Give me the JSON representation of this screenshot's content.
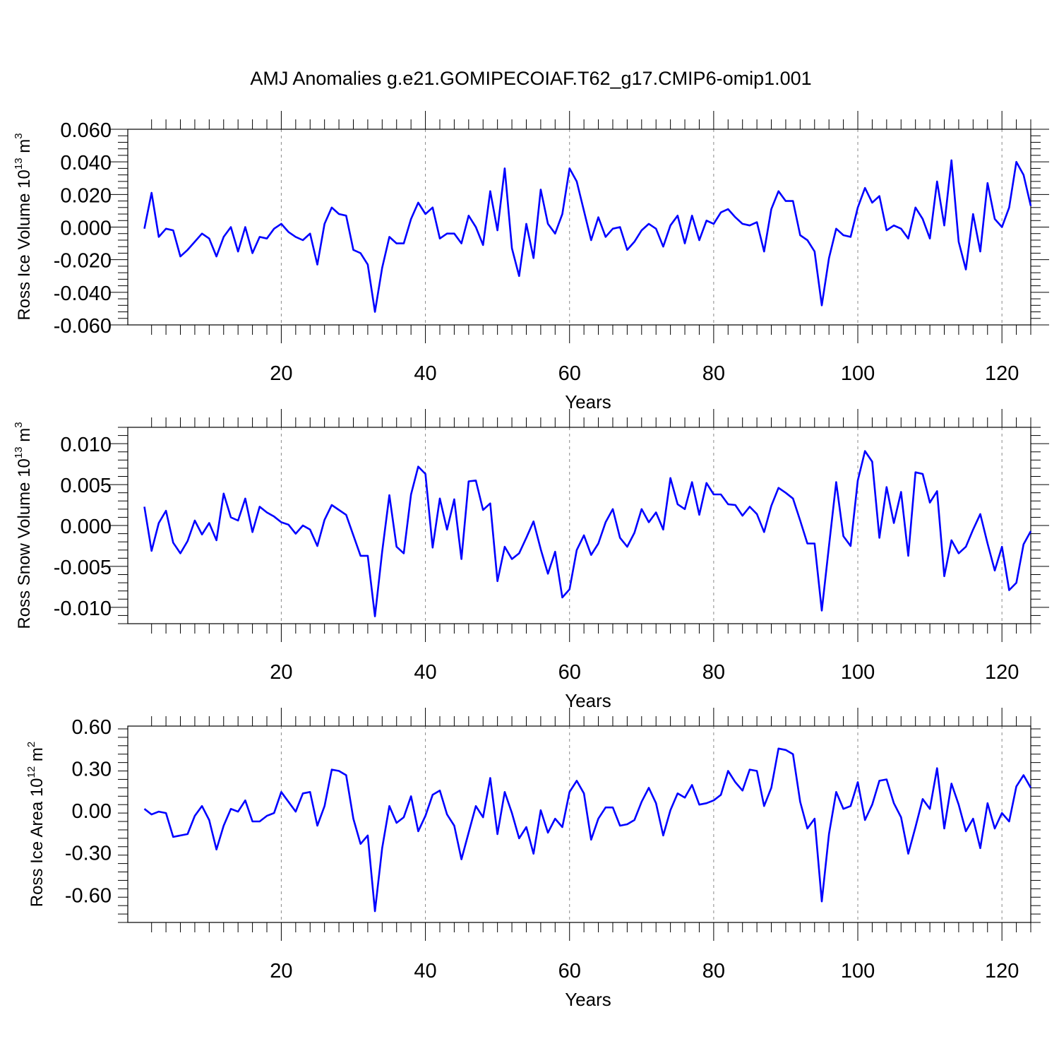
{
  "figure_title": "AMJ Anomalies g.e21.GOMIPECOIAF.T62_g17.CMIP6-omip1.001",
  "line_color": "#0000ff",
  "chart_data": [
    {
      "type": "line",
      "title": "AMJ Anomalies g.e21.GOMIPECOIAF.T62_g17.CMIP6-omip1.001",
      "ylabel_main": "Ross Ice Volume 10",
      "ylabel_exp": "13",
      "ylabel_unit": "m",
      "ylabel_unit_exp": "3",
      "xlabel": "Years",
      "xlim": [
        1,
        124
      ],
      "ylim": [
        -0.06,
        0.06
      ],
      "yticks": [
        -0.06,
        -0.04,
        -0.02,
        0.0,
        0.02,
        0.04,
        0.06
      ],
      "ytick_labels": [
        "-0.060",
        "-0.040",
        "-0.020",
        "0.000",
        "0.020",
        "0.040",
        "0.060"
      ],
      "xticks": [
        20,
        40,
        60,
        80,
        100,
        120
      ],
      "xtick_labels": [
        "20",
        "40",
        "60",
        "80",
        "100",
        "120"
      ],
      "grid_x": [
        20,
        40,
        60,
        80,
        100,
        120
      ],
      "series": [
        {
          "name": "Ross Ice Volume",
          "x_start": 1,
          "values": [
            -0.001,
            0.021,
            -0.006,
            -0.001,
            -0.002,
            -0.018,
            -0.014,
            -0.009,
            -0.004,
            -0.007,
            -0.018,
            -0.006,
            0.0,
            -0.015,
            0.0,
            -0.016,
            -0.006,
            -0.007,
            -0.001,
            0.002,
            -0.003,
            -0.006,
            -0.008,
            -0.004,
            -0.023,
            0.002,
            0.012,
            0.008,
            0.007,
            -0.014,
            -0.016,
            -0.023,
            -0.052,
            -0.025,
            -0.006,
            -0.01,
            -0.01,
            0.005,
            0.015,
            0.008,
            0.012,
            -0.007,
            -0.004,
            -0.004,
            -0.01,
            0.007,
            0.0,
            -0.011,
            0.022,
            -0.002,
            0.036,
            -0.013,
            -0.03,
            0.002,
            -0.019,
            0.023,
            0.002,
            -0.004,
            0.008,
            0.036,
            0.028,
            0.01,
            -0.008,
            0.006,
            -0.006,
            -0.001,
            0.0,
            -0.014,
            -0.009,
            -0.002,
            0.002,
            -0.001,
            -0.012,
            0.001,
            0.007,
            -0.01,
            0.007,
            -0.008,
            0.004,
            0.002,
            0.009,
            0.011,
            0.006,
            0.002,
            0.001,
            0.003,
            -0.015,
            0.011,
            0.022,
            0.016,
            0.016,
            -0.005,
            -0.008,
            -0.015,
            -0.048,
            -0.019,
            -0.001,
            -0.005,
            -0.006,
            0.012,
            0.024,
            0.015,
            0.019,
            -0.002,
            0.001,
            -0.001,
            -0.007,
            0.012,
            0.005,
            -0.007,
            0.028,
            0.001,
            0.041,
            -0.009,
            -0.026,
            0.008,
            -0.015,
            0.027,
            0.005,
            0.0,
            0.012,
            0.04,
            0.032,
            0.013
          ]
        }
      ]
    },
    {
      "type": "line",
      "ylabel_main": "Ross Snow Volume 10",
      "ylabel_exp": "13",
      "ylabel_unit": "m",
      "ylabel_unit_exp": "3",
      "xlabel": "Years",
      "xlim": [
        1,
        124
      ],
      "ylim": [
        -0.012,
        0.012
      ],
      "yticks": [
        -0.01,
        -0.005,
        0.0,
        0.005,
        0.01
      ],
      "ytick_labels": [
        "-0.010",
        "-0.005",
        "0.000",
        "0.005",
        "0.010"
      ],
      "xticks": [
        20,
        40,
        60,
        80,
        100,
        120
      ],
      "xtick_labels": [
        "20",
        "40",
        "60",
        "80",
        "100",
        "120"
      ],
      "grid_x": [
        20,
        40,
        60,
        80,
        100,
        120
      ],
      "series": [
        {
          "name": "Ross Snow Volume",
          "x_start": 1,
          "values": [
            0.0023,
            -0.0031,
            0.0003,
            0.0018,
            -0.0021,
            -0.0034,
            -0.0019,
            0.0006,
            -0.0011,
            0.0003,
            -0.0018,
            0.0039,
            0.001,
            0.0006,
            0.0033,
            -0.0008,
            0.0023,
            0.0016,
            0.0011,
            0.0004,
            0.0001,
            -0.001,
            0.0,
            -0.0005,
            -0.0025,
            0.0007,
            0.0025,
            0.0019,
            0.0013,
            -0.0012,
            -0.0037,
            -0.0037,
            -0.0111,
            -0.0032,
            0.0037,
            -0.0026,
            -0.0034,
            0.0038,
            0.0072,
            0.0063,
            -0.0027,
            0.0033,
            -0.0005,
            0.0032,
            -0.0041,
            0.0054,
            0.0055,
            0.0019,
            0.0027,
            -0.0068,
            -0.0026,
            -0.0041,
            -0.0034,
            -0.0015,
            0.0005,
            -0.0029,
            -0.0059,
            -0.0032,
            -0.0088,
            -0.0078,
            -0.003,
            -0.0012,
            -0.0036,
            -0.0022,
            0.0004,
            0.002,
            -0.0015,
            -0.0026,
            -0.0009,
            0.002,
            0.0004,
            0.0016,
            -0.0005,
            0.0058,
            0.0026,
            0.002,
            0.0053,
            0.0013,
            0.0052,
            0.0038,
            0.0038,
            0.0026,
            0.0025,
            0.0012,
            0.0023,
            0.0014,
            -0.0008,
            0.0024,
            0.0046,
            0.004,
            0.0033,
            0.0006,
            -0.0022,
            -0.0022,
            -0.0104,
            -0.0025,
            0.0053,
            -0.0013,
            -0.0025,
            0.0055,
            0.0091,
            0.0078,
            -0.0015,
            0.0047,
            0.0003,
            0.0041,
            -0.0037,
            0.0065,
            0.0063,
            0.0028,
            0.0042,
            -0.0062,
            -0.0018,
            -0.0034,
            -0.0026,
            -0.0005,
            0.0014,
            -0.0022,
            -0.0055,
            -0.0026,
            -0.0079,
            -0.007,
            -0.0023,
            -0.0007
          ]
        }
      ]
    },
    {
      "type": "line",
      "ylabel_main": "Ross Ice Area 10",
      "ylabel_exp": "12",
      "ylabel_unit": "m",
      "ylabel_unit_exp": "2",
      "xlabel": "Years",
      "xlim": [
        1,
        124
      ],
      "ylim": [
        -0.8,
        0.6
      ],
      "yticks": [
        -0.6,
        -0.3,
        0.0,
        0.3,
        0.6
      ],
      "ytick_labels": [
        "-0.60",
        "-0.30",
        "0.00",
        "0.30",
        "0.60"
      ],
      "xticks": [
        20,
        40,
        60,
        80,
        100,
        120
      ],
      "xtick_labels": [
        "20",
        "40",
        "60",
        "80",
        "100",
        "120"
      ],
      "grid_x": [
        20,
        40,
        60,
        80,
        100,
        120
      ],
      "series": [
        {
          "name": "Ross Ice Area",
          "x_start": 1,
          "values": [
            0.01,
            -0.03,
            -0.01,
            -0.02,
            -0.19,
            -0.18,
            -0.17,
            -0.04,
            0.03,
            -0.07,
            -0.28,
            -0.11,
            0.01,
            -0.01,
            0.07,
            -0.08,
            -0.08,
            -0.04,
            -0.02,
            0.13,
            0.06,
            -0.01,
            0.12,
            0.13,
            -0.11,
            0.03,
            0.29,
            0.28,
            0.25,
            -0.06,
            -0.24,
            -0.18,
            -0.72,
            -0.27,
            0.03,
            -0.09,
            -0.05,
            0.1,
            -0.15,
            -0.04,
            0.11,
            0.14,
            -0.03,
            -0.11,
            -0.35,
            -0.16,
            0.03,
            -0.05,
            0.23,
            -0.17,
            0.13,
            -0.02,
            -0.2,
            -0.12,
            -0.31,
            0.0,
            -0.16,
            -0.06,
            -0.12,
            0.13,
            0.21,
            0.12,
            -0.21,
            -0.06,
            0.02,
            0.02,
            -0.11,
            -0.1,
            -0.07,
            0.06,
            0.16,
            0.05,
            -0.18,
            0.0,
            0.12,
            0.09,
            0.18,
            0.04,
            0.05,
            0.07,
            0.11,
            0.28,
            0.2,
            0.14,
            0.29,
            0.28,
            0.03,
            0.16,
            0.44,
            0.43,
            0.4,
            0.06,
            -0.13,
            -0.06,
            -0.65,
            -0.17,
            0.13,
            0.01,
            0.03,
            0.2,
            -0.07,
            0.04,
            0.21,
            0.22,
            0.05,
            -0.05,
            -0.31,
            -0.12,
            0.08,
            0.01,
            0.3,
            -0.13,
            0.19,
            0.04,
            -0.15,
            -0.06,
            -0.27,
            0.05,
            -0.13,
            -0.02,
            -0.08,
            0.17,
            0.25,
            0.16
          ]
        }
      ]
    }
  ]
}
